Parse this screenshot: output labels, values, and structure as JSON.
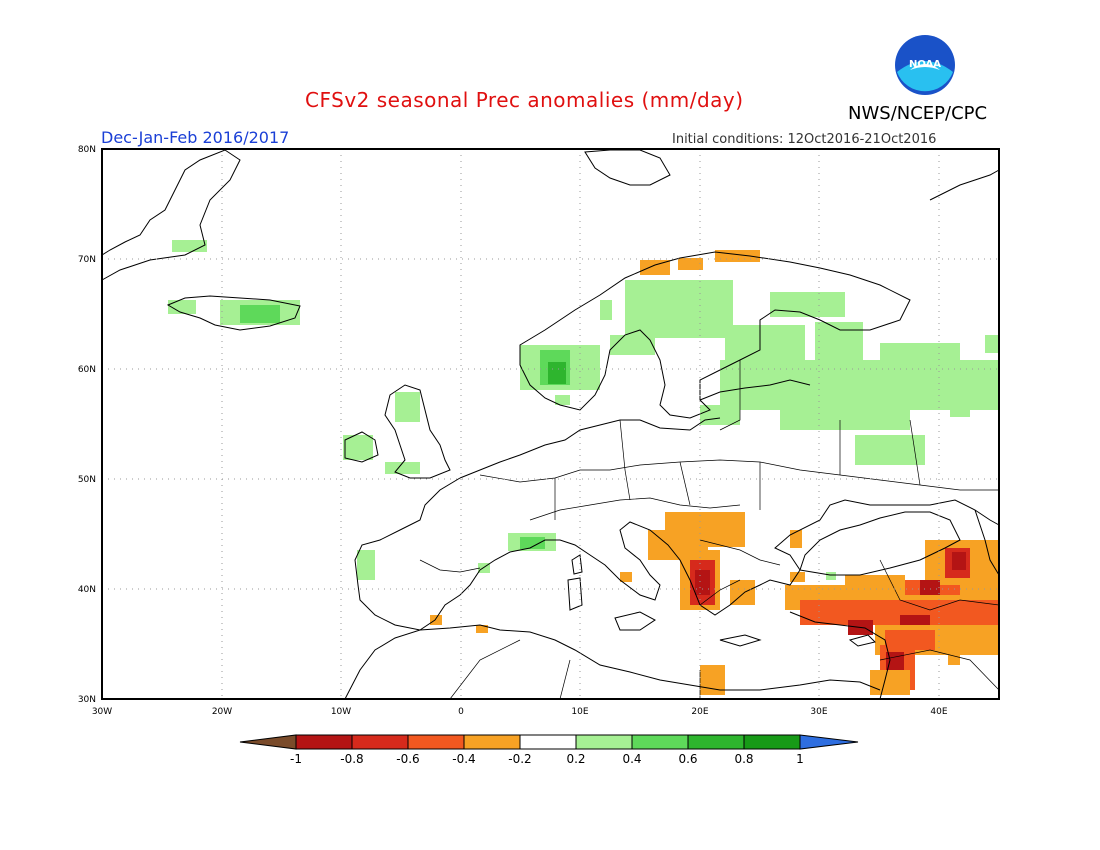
{
  "header": {
    "title": "CFSv2 seasonal Prec anomalies (mm/day)",
    "org": "NWS/NCEP/CPC",
    "season": "Dec-Jan-Feb 2016/2017",
    "initial_conditions": "Initial conditions: 12Oct2016-21Oct2016",
    "logo_text": "NOAA"
  },
  "map": {
    "lon_range": [
      -30,
      45
    ],
    "lat_range": [
      30,
      80
    ],
    "lat_labels": [
      "80N",
      "70N",
      "60N",
      "50N",
      "40N",
      "30N"
    ],
    "lon_labels": [
      "30W",
      "20W",
      "10W",
      "0",
      "10E",
      "20E",
      "30E",
      "40E"
    ]
  },
  "colorbar": {
    "labels": [
      "-1",
      "-0.8",
      "-0.6",
      "-0.4",
      "-0.2",
      "0.2",
      "0.4",
      "0.6",
      "0.8",
      "1"
    ],
    "colors": [
      "#7a4b2a",
      "#b41414",
      "#d62a1c",
      "#f25820",
      "#f7a224",
      "#ffffff",
      "#a6f094",
      "#5ed95a",
      "#2eb52e",
      "#179a17",
      "#2e6ee0"
    ]
  }
}
